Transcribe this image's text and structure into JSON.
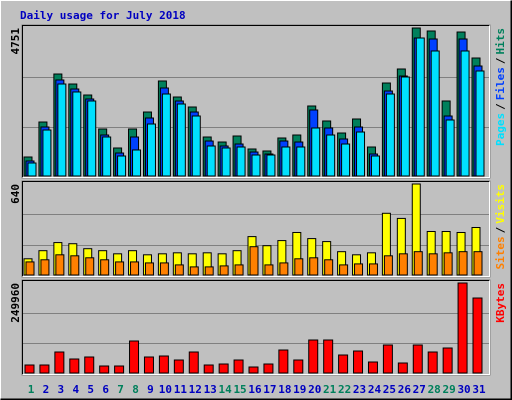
{
  "chart_data": [
    {
      "type": "bar",
      "title": "Daily usage for July 2018",
      "legend_separator": "/",
      "ylim": [
        0,
        4751
      ],
      "yticks": [
        4751
      ],
      "series": [
        {
          "name": "Hits",
          "color": "#00805c",
          "values": [
            610,
            1733,
            3274,
            2953,
            2600,
            1509,
            899,
            1509,
            2054,
            3050,
            2536,
            2215,
            1252,
            1091,
            1284,
            867,
            803,
            1220,
            1316,
            2247,
            1766,
            1380,
            1830,
            931,
            2985,
            3435,
            4751,
            4655,
            2408,
            4622,
            3788
          ]
        },
        {
          "name": "Files",
          "color": "#0040ff",
          "values": [
            482,
            1573,
            3082,
            2793,
            2472,
            1316,
            738,
            1252,
            1862,
            2825,
            2408,
            2054,
            1123,
            963,
            1027,
            770,
            706,
            1123,
            1091,
            2119,
            1541,
            1188,
            1573,
            706,
            2729,
            3210,
            4430,
            4398,
            1926,
            4398,
            3531
          ]
        },
        {
          "name": "Pages",
          "color": "#00e0ff",
          "values": [
            417,
            1476,
            2953,
            2697,
            2408,
            1252,
            642,
            835,
            1669,
            2632,
            2311,
            1926,
            963,
            899,
            931,
            674,
            674,
            931,
            931,
            1541,
            1316,
            1027,
            1412,
            642,
            2632,
            3178,
            4430,
            4013,
            1798,
            4013,
            3371
          ]
        }
      ]
    },
    {
      "type": "bar",
      "legend_separator": "/",
      "ylim": [
        0,
        640
      ],
      "yticks": [
        640
      ],
      "series": [
        {
          "name": "Visits",
          "color": "#ffff00",
          "values": [
            114,
            171,
            228,
            220,
            185,
            171,
            149,
            171,
            142,
            149,
            156,
            149,
            156,
            149,
            171,
            270,
            206,
            242,
            299,
            256,
            235,
            164,
            142,
            156,
            434,
            398,
            640,
            306,
            306,
            299,
            334
          ]
        },
        {
          "name": "Sites",
          "color": "#ff8000",
          "values": [
            92,
            107,
            142,
            135,
            121,
            107,
            92,
            92,
            85,
            85,
            71,
            57,
            57,
            64,
            71,
            199,
            71,
            85,
            114,
            121,
            107,
            71,
            78,
            78,
            135,
            149,
            164,
            149,
            156,
            164,
            164
          ]
        }
      ]
    },
    {
      "type": "bar",
      "ylim": [
        0,
        249960
      ],
      "yticks": [
        249960
      ],
      "categories": [
        "1",
        "2",
        "3",
        "4",
        "5",
        "6",
        "7",
        "8",
        "9",
        "10",
        "11",
        "12",
        "13",
        "14",
        "15",
        "16",
        "17",
        "18",
        "19",
        "20",
        "21",
        "22",
        "23",
        "24",
        "25",
        "26",
        "27",
        "28",
        "29",
        "30",
        "31"
      ],
      "category_colors": [
        "#00805c",
        "#0000c0",
        "#0000c0",
        "#0000c0",
        "#0000c0",
        "#0000c0",
        "#00805c",
        "#00805c",
        "#0000c0",
        "#0000c0",
        "#0000c0",
        "#0000c0",
        "#0000c0",
        "#00805c",
        "#00805c",
        "#0000c0",
        "#0000c0",
        "#0000c0",
        "#0000c0",
        "#0000c0",
        "#00805c",
        "#00805c",
        "#0000c0",
        "#0000c0",
        "#0000c0",
        "#0000c0",
        "#0000c0",
        "#00805c",
        "#00805c",
        "#0000c0",
        "#0000c0"
      ],
      "series": [
        {
          "name": "KBytes",
          "color": "#ff0000",
          "values": [
            22216,
            22216,
            58317,
            38878,
            44432,
            19439,
            19439,
            88864,
            44432,
            47209,
            36101,
            58317,
            22216,
            24993,
            36101,
            16662,
            24993,
            63871,
            36101,
            91641,
            91641,
            49986,
            61094,
            30547,
            77756,
            27770,
            77756,
            58317,
            69425,
            249960,
            208275
          ]
        }
      ]
    }
  ]
}
